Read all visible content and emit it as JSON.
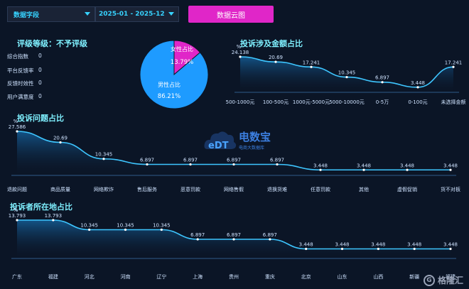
{
  "filters": {
    "field_label": "数据字段",
    "date_range": "2025-01 - 2025-12",
    "cloud_button": "数据云图"
  },
  "rating": {
    "title": "评级等级：不予评级",
    "items": [
      {
        "label": "综合指数",
        "value": "0"
      },
      {
        "label": "平台反馈率",
        "value": "0"
      },
      {
        "label": "反馈时效性",
        "value": "0"
      },
      {
        "label": "用户满意度",
        "value": "0"
      }
    ]
  },
  "logo": {
    "main": "电数宝",
    "sub": "电商大数据库",
    "mark": "eDT"
  },
  "watermark": "格隆汇",
  "chart_data": [
    {
      "type": "pie",
      "id": "gender",
      "labels": [
        "女性占比",
        "男性占比"
      ],
      "values": [
        13.79,
        86.21
      ],
      "value_labels": [
        "13.79%",
        "86.21%"
      ],
      "colors": [
        "#e026c8",
        "#1e9bff"
      ]
    },
    {
      "type": "area",
      "id": "amount",
      "title": "投诉涉及金额占比",
      "unit": "%",
      "categories": [
        "500-1000元",
        "100-500元",
        "1000元-5000元",
        "5000-10000元",
        "0-5万",
        "0-100元",
        "未选择金额"
      ],
      "values": [
        24.138,
        20.69,
        17.241,
        10.345,
        6.897,
        3.448,
        17.241
      ],
      "ylim": [
        0,
        24.138
      ]
    },
    {
      "type": "area",
      "id": "issue",
      "title": "投诉问题占比",
      "unit": "%",
      "categories": [
        "退款问题",
        "商品质量",
        "网络欺诈",
        "售后服务",
        "恶意罚款",
        "网络售假",
        "退换货难",
        "任意罚款",
        "其他",
        "虚假促销",
        "货不对板"
      ],
      "values": [
        27.586,
        20.69,
        10.345,
        6.897,
        6.897,
        6.897,
        6.897,
        3.448,
        3.448,
        3.448,
        3.448
      ],
      "ylim": [
        0,
        27.586
      ]
    },
    {
      "type": "area",
      "id": "region",
      "title": "投诉者所在地占比",
      "unit": "%",
      "categories": [
        "广东",
        "福建",
        "河北",
        "河南",
        "辽宁",
        "上海",
        "贵州",
        "重庆",
        "北京",
        "山东",
        "山西",
        "新疆",
        "福建"
      ],
      "values": [
        13.793,
        13.793,
        10.345,
        10.345,
        10.345,
        6.897,
        6.897,
        6.897,
        3.448,
        3.448,
        3.448,
        3.448,
        3.448
      ],
      "ylim": [
        0,
        13.793
      ]
    }
  ]
}
